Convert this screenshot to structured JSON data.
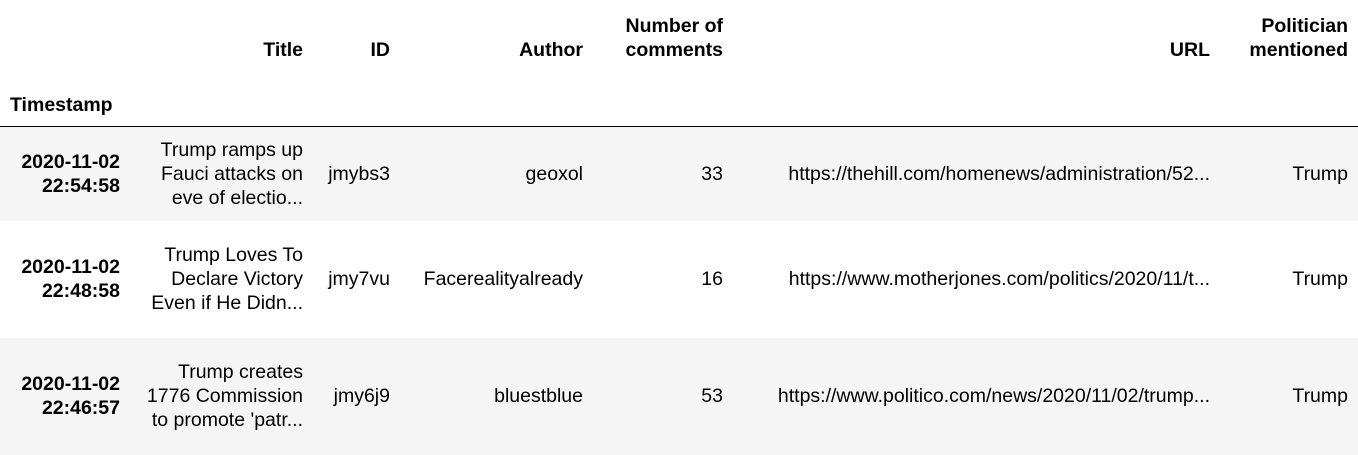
{
  "table": {
    "columns": {
      "title": "Title",
      "id": "ID",
      "author": "Author",
      "num_comments": "Number of comments",
      "url": "URL",
      "politician": "Politician mentioned"
    },
    "index_name": "Timestamp",
    "rows": [
      {
        "timestamp": "2020-11-02 22:54:58",
        "title": "Trump ramps up Fauci attacks on eve of electio...",
        "id": "jmybs3",
        "author": "geoxol",
        "num_comments": "33",
        "url": "https://thehill.com/homenews/administration/52...",
        "politician": "Trump"
      },
      {
        "timestamp": "2020-11-02 22:48:58",
        "title": "Trump Loves To Declare Victory Even if He Didn...",
        "id": "jmy7vu",
        "author": "Facerealityalready",
        "num_comments": "16",
        "url": "https://www.motherjones.com/politics/2020/11/t...",
        "politician": "Trump"
      },
      {
        "timestamp": "2020-11-02 22:46:57",
        "title": "Trump creates 1776 Commission to promote 'patr...",
        "id": "jmy6j9",
        "author": "bluestblue",
        "num_comments": "53",
        "url": "https://www.politico.com/news/2020/11/02/trump...",
        "politician": "Trump"
      }
    ]
  }
}
